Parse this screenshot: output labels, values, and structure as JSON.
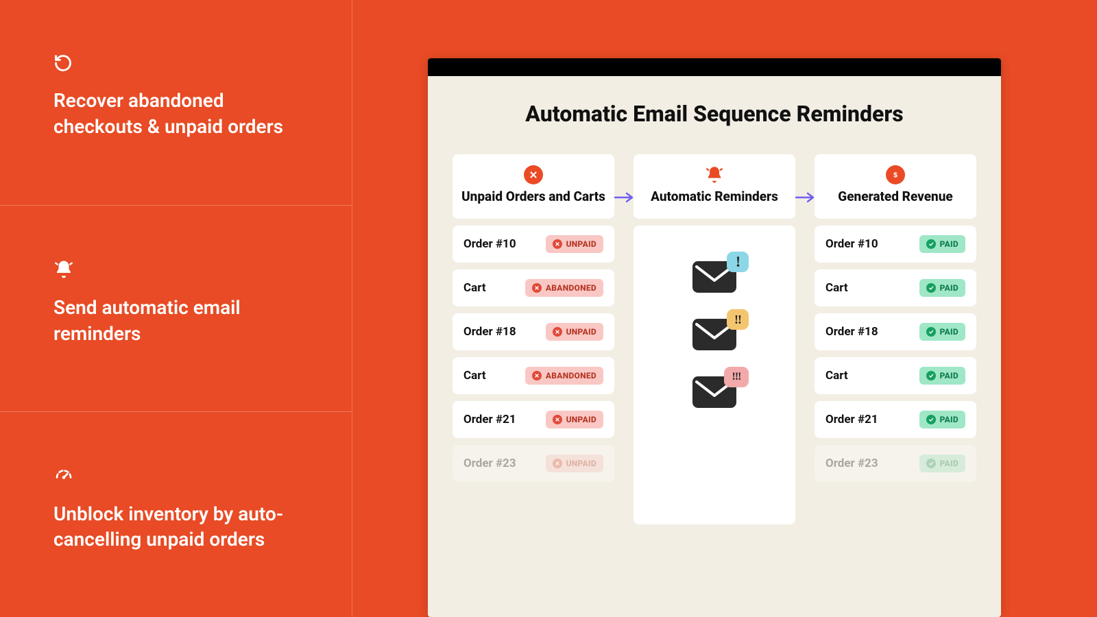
{
  "colors": {
    "background": "#e84b25",
    "window_bg": "#f3eee4",
    "titlebar": "#000000",
    "card_bg": "#ffffff",
    "accent": "#ea4b25",
    "arrow": "#6e5ef2",
    "sidebar_divider": "rgba(255,255,255,0.25)"
  },
  "sidebar": {
    "features": [
      {
        "icon": "recover",
        "text": "Recover abandoned checkouts & unpaid orders"
      },
      {
        "icon": "bell",
        "text": "Send automatic email reminders"
      },
      {
        "icon": "gauge",
        "text": "Unblock inventory by auto-cancelling unpaid orders"
      }
    ]
  },
  "main": {
    "title": "Automatic Email Sequence Reminders",
    "columns": {
      "left": {
        "icon": "x-circle",
        "title": "Unpaid Orders and Carts"
      },
      "middle": {
        "icon": "bell-ring",
        "title": "Automatic Reminders"
      },
      "right": {
        "icon": "dollar-circle",
        "title": "Generated Revenue"
      }
    },
    "unpaid_items": [
      {
        "label": "Order #10",
        "status": "UNPAID",
        "chip_type": "unpaid",
        "faded": false
      },
      {
        "label": "Cart",
        "status": "ABANDONED",
        "chip_type": "abandoned",
        "faded": false
      },
      {
        "label": "Order #18",
        "status": "UNPAID",
        "chip_type": "unpaid",
        "faded": false
      },
      {
        "label": "Cart",
        "status": "ABANDONED",
        "chip_type": "abandoned",
        "faded": false
      },
      {
        "label": "Order #21",
        "status": "UNPAID",
        "chip_type": "unpaid",
        "faded": false
      },
      {
        "label": "Order #23",
        "status": "UNPAID",
        "chip_type": "unpaid",
        "faded": true
      }
    ],
    "paid_items": [
      {
        "label": "Order #10",
        "status": "PAID",
        "chip_type": "paid",
        "faded": false
      },
      {
        "label": "Cart",
        "status": "PAID",
        "chip_type": "paid",
        "faded": false
      },
      {
        "label": "Order #18",
        "status": "PAID",
        "chip_type": "paid",
        "faded": false
      },
      {
        "label": "Cart",
        "status": "PAID",
        "chip_type": "paid",
        "faded": false
      },
      {
        "label": "Order #21",
        "status": "PAID",
        "chip_type": "paid",
        "faded": false
      },
      {
        "label": "Order #23",
        "status": "PAID",
        "chip_type": "paid",
        "faded": true
      }
    ],
    "reminder_levels": [
      {
        "marks": "!",
        "bubble": "b1"
      },
      {
        "marks": "!!",
        "bubble": "b2"
      },
      {
        "marks": "!!!",
        "bubble": "b3"
      }
    ]
  }
}
